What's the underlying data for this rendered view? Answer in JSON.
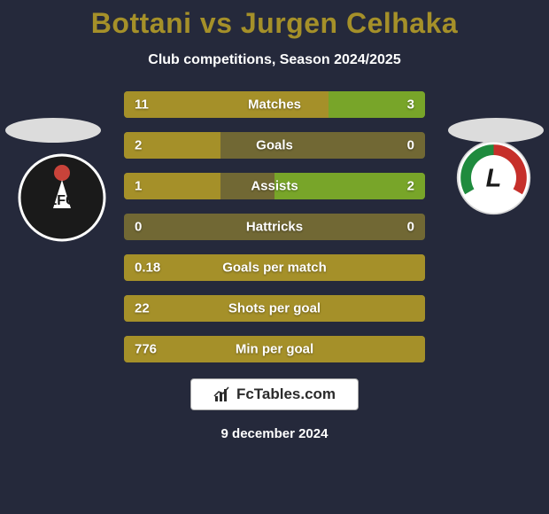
{
  "colors": {
    "background": "#25293b",
    "title": "#a59029",
    "subtitle": "#ffffff",
    "bar_left": "#a59029",
    "bar_right": "#78a529",
    "bar_track": "#716834",
    "stat_text": "#ffffff",
    "fctables_bg": "#ffffff",
    "fctables_border": "#a8a8a8",
    "fctables_text": "#2b2b2b",
    "date_text": "#ffffff",
    "halo": "#dcdcdc",
    "crest_left_bg": "#1a1a1a",
    "crest_left_border": "#ffffff",
    "crest_left_text": "#ffffff",
    "crest_right_bg": "#ffffff",
    "crest_right_border": "#d8d8d8"
  },
  "title": "Bottani vs Jurgen Celhaka",
  "subtitle": "Club competitions, Season 2024/2025",
  "stats": [
    {
      "label": "Matches",
      "left_val": "11",
      "right_val": "3",
      "left_pct": 68,
      "right_pct": 32
    },
    {
      "label": "Goals",
      "left_val": "2",
      "right_val": "0",
      "left_pct": 32,
      "right_pct": 0
    },
    {
      "label": "Assists",
      "left_val": "1",
      "right_val": "2",
      "left_pct": 32,
      "right_pct": 50
    },
    {
      "label": "Hattricks",
      "left_val": "0",
      "right_val": "0",
      "left_pct": 0,
      "right_pct": 0
    },
    {
      "label": "Goals per match",
      "left_val": "0.18",
      "right_val": "",
      "left_pct": 100,
      "right_pct": 0
    },
    {
      "label": "Shots per goal",
      "left_val": "22",
      "right_val": "",
      "left_pct": 100,
      "right_pct": 0
    },
    {
      "label": "Min per goal",
      "left_val": "776",
      "right_val": "",
      "left_pct": 100,
      "right_pct": 0
    }
  ],
  "fctables_label": "FcTables.com",
  "date": "9 december 2024",
  "club_left_label": "LFC",
  "club_right_label": "L"
}
